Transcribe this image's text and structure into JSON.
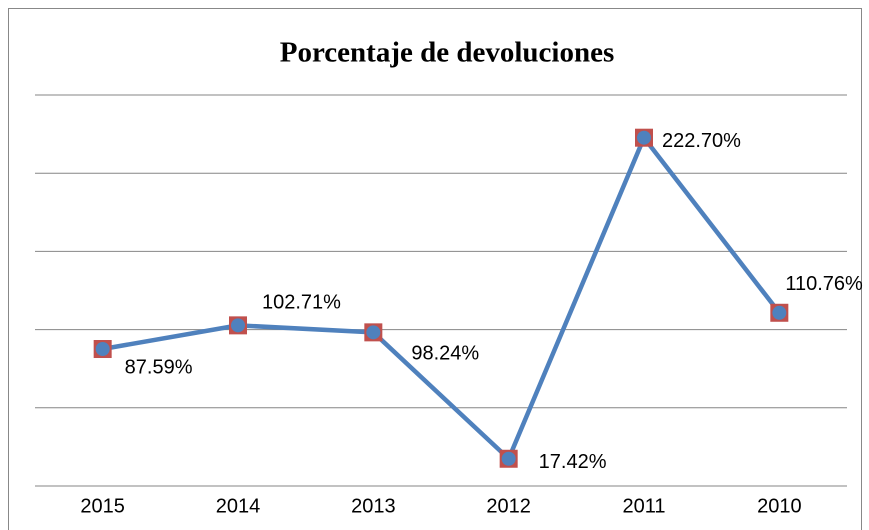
{
  "chart_data": {
    "type": "line",
    "title": "Porcentaje de devoluciones",
    "categories": [
      "2015",
      "2014",
      "2013",
      "2012",
      "2011",
      "2010"
    ],
    "series": [
      {
        "color": "#4f81bd",
        "marker_color": "#c0504d",
        "values": [
          87.59,
          102.71,
          98.24,
          17.42,
          222.7,
          110.76
        ],
        "value_labels": [
          "87.59%",
          "102.71%",
          "98.24%",
          "17.42%",
          "222.70%",
          "110.76%"
        ]
      }
    ],
    "ylim": [
      0,
      250
    ],
    "yticks": [
      0,
      50,
      100,
      150,
      200,
      250
    ],
    "grid": true
  }
}
